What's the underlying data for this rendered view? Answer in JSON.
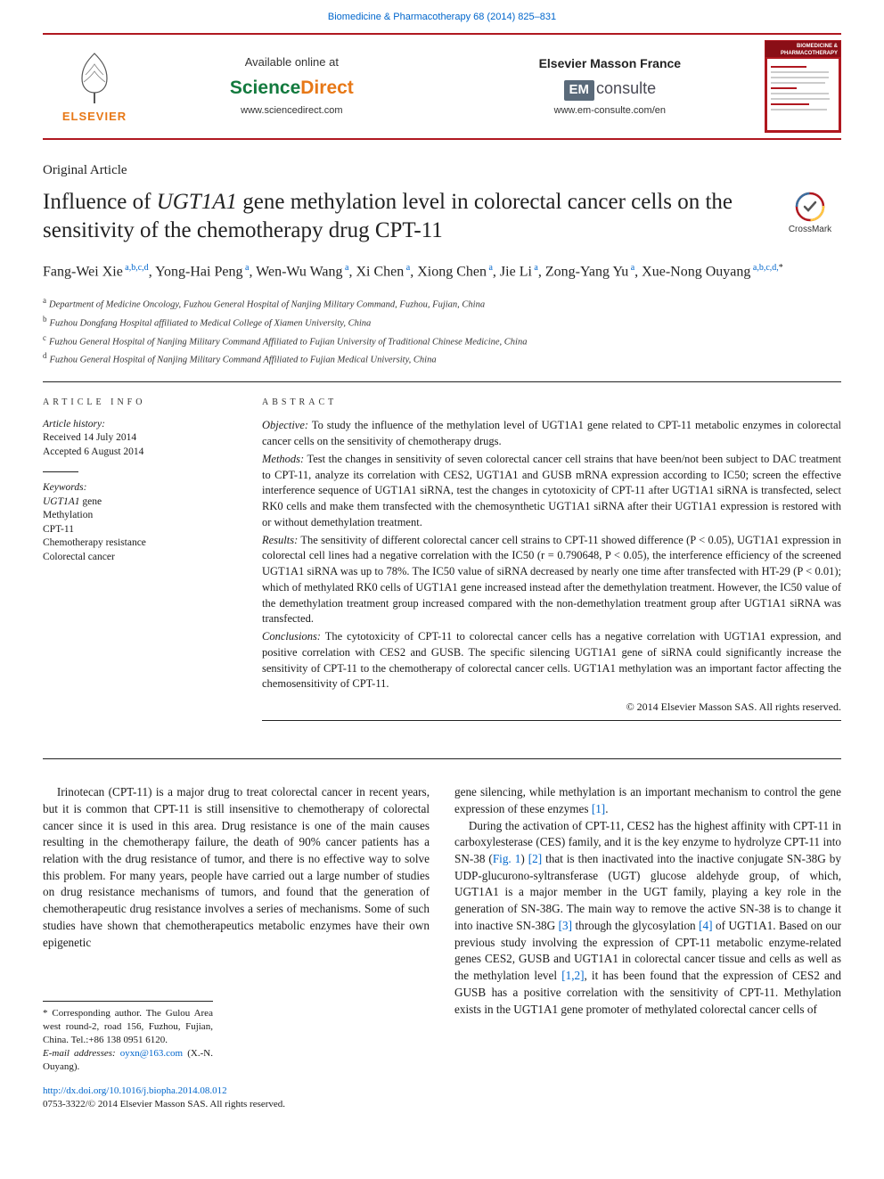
{
  "header_citation": "Biomedicine & Pharmacotherapy 68 (2014) 825–831",
  "top_band": {
    "elsevier_label": "ELSEVIER",
    "available_text": "Available online at",
    "sciencedirect_science": "Science",
    "sciencedirect_direct": "Direct",
    "sd_url": "www.sciencedirect.com",
    "masson_title": "Elsevier Masson France",
    "em_prefix": "EM",
    "em_consulte": "consulte",
    "em_url": "www.em-consulte.com/en",
    "cover_title": "BIOMEDICINE & PHARMACOTHERAPY",
    "cover_border_color": "#b01820"
  },
  "article_type": "Original Article",
  "title_pre": "Influence of ",
  "title_italic": "UGT1A1",
  "title_post": " gene methylation level in colorectal cancer cells on the sensitivity of the chemotherapy drug CPT-11",
  "crossmark_label": "CrossMark",
  "authors_raw": "Fang-Wei Xie a,b,c,d, Yong-Hai Peng a, Wen-Wu Wang a, Xi Chen a, Xiong Chen a, Jie Li a, Zong-Yang Yu a, Xue-Nong Ouyang a,b,c,d,*",
  "authors": [
    {
      "name": "Fang-Wei Xie",
      "aff": "a,b,c,d"
    },
    {
      "name": "Yong-Hai Peng",
      "aff": "a"
    },
    {
      "name": "Wen-Wu Wang",
      "aff": "a"
    },
    {
      "name": "Xi Chen",
      "aff": "a"
    },
    {
      "name": "Xiong Chen",
      "aff": "a"
    },
    {
      "name": "Jie Li",
      "aff": "a"
    },
    {
      "name": "Zong-Yang Yu",
      "aff": "a"
    },
    {
      "name": "Xue-Nong Ouyang",
      "aff": "a,b,c,d,",
      "star": true
    }
  ],
  "affiliations": {
    "a": "Department of Medicine Oncology, Fuzhou General Hospital of Nanjing Military Command, Fuzhou, Fujian, China",
    "b": "Fuzhou Dongfang Hospital affiliated to Medical College of Xiamen University, China",
    "c": "Fuzhou General Hospital of Nanjing Military Command Affiliated to Fujian University of Traditional Chinese Medicine, China",
    "d": "Fuzhou General Hospital of Nanjing Military Command Affiliated to Fujian Medical University, China"
  },
  "article_info": {
    "label": "ARTICLE INFO",
    "history_label": "Article history:",
    "received": "Received 14 July 2014",
    "accepted": "Accepted 6 August 2014",
    "keywords_label": "Keywords:",
    "keywords": [
      "UGT1A1 gene",
      "Methylation",
      "CPT-11",
      "Chemotherapy resistance",
      "Colorectal cancer"
    ]
  },
  "abstract": {
    "label": "ABSTRACT",
    "objective_label": "Objective:",
    "objective": " To study the influence of the methylation level of UGT1A1 gene related to CPT-11 metabolic enzymes in colorectal cancer cells on the sensitivity of chemotherapy drugs.",
    "methods_label": "Methods:",
    "methods": " Test the changes in sensitivity of seven colorectal cancer cell strains that have been/not been subject to DAC treatment to CPT-11, analyze its correlation with CES2, UGT1A1 and GUSB mRNA expression according to IC50; screen the effective interference sequence of UGT1A1 siRNA, test the changes in cytotoxicity of CPT-11 after UGT1A1 siRNA is transfected, select RK0 cells and make them transfected with the chemosynthetic UGT1A1 siRNA after their UGT1A1 expression is restored with or without demethylation treatment.",
    "results_label": "Results:",
    "results": " The sensitivity of different colorectal cancer cell strains to CPT-11 showed difference (P < 0.05), UGT1A1 expression in colorectal cell lines had a negative correlation with the IC50 (r = 0.790648, P < 0.05), the interference efficiency of the screened UGT1A1 siRNA was up to 78%. The IC50 value of siRNA decreased by nearly one time after transfected with HT-29 (P < 0.01); which of methylated RK0 cells of UGT1A1 gene increased instead after the demethylation treatment. However, the IC50 value of the demethylation treatment group increased compared with the non-demethylation treatment group after UGT1A1 siRNA was transfected.",
    "conclusions_label": "Conclusions:",
    "conclusions": " The cytotoxicity of CPT-11 to colorectal cancer cells has a negative correlation with UGT1A1 expression, and positive correlation with CES2 and GUSB. The specific silencing UGT1A1 gene of siRNA could significantly increase the sensitivity of CPT-11 to the chemotherapy of colorectal cancer cells. UGT1A1 methylation was an important factor affecting the chemosensitivity of CPT-11.",
    "copyright": "© 2014 Elsevier Masson SAS. All rights reserved."
  },
  "body": {
    "p1": "Irinotecan (CPT-11) is a major drug to treat colorectal cancer in recent years, but it is common that CPT-11 is still insensitive to chemotherapy of colorectal cancer since it is used in this area. Drug resistance is one of the main causes resulting in the chemotherapy failure, the death of 90% cancer patients has a relation with the drug resistance of tumor, and there is no effective way to solve this problem. For many years, people have carried out a large number of studies on drug resistance mechanisms of tumors, and found that the generation of chemotherapeutic drug resistance involves a series of mechanisms. Some of such studies have shown that chemotherapeutics metabolic enzymes have their own epigenetic",
    "p2a": "gene silencing, while methylation is an important mechanism to control the gene expression of these enzymes ",
    "p2_ref1": "[1]",
    "p2b": ".",
    "p3a": "During the activation of CPT-11, CES2 has the highest affinity with CPT-11 in carboxylesterase (CES) family, and it is the key enzyme to hydrolyze CPT-11 into SN-38 (",
    "p3_fig": "Fig. 1",
    "p3b": ") ",
    "p3_ref2": "[2]",
    "p3c": " that is then inactivated into the inactive conjugate SN-38G by UDP-glucurono-syltransferase (UGT) glucose aldehyde group, of which, UGT1A1 is a major member in the UGT family, playing a key role in the generation of SN-38G. The main way to remove the active SN-38 is to change it into inactive SN-38G ",
    "p3_ref3": "[3]",
    "p3d": " through the glycosylation ",
    "p3_ref4": "[4]",
    "p3e": " of UGT1A1. Based on our previous study involving the expression of CPT-11 metabolic enzyme-related genes CES2, GUSB and UGT1A1 in colorectal cancer tissue and cells as well as the methylation level ",
    "p3_ref12": "[1,2]",
    "p3f": ", it has been found that the expression of CES2 and GUSB has a positive correlation with the sensitivity of CPT-11. Methylation exists in the UGT1A1 gene promoter of methylated colorectal cancer cells of"
  },
  "footnote": {
    "corr": "* Corresponding author. The Gulou Area west round-2, road 156, Fuzhou, Fujian, China. Tel.:+86 138 0951 6120.",
    "email_label": "E-mail addresses: ",
    "email": "oyxn@163.com",
    "email_tail": " (X.-N. Ouyang)."
  },
  "doi": {
    "url": "http://dx.doi.org/10.1016/j.biopha.2014.08.012",
    "issn_line": "0753-3322/© 2014 Elsevier Masson SAS. All rights reserved."
  },
  "colors": {
    "brand_red": "#b01820",
    "link_blue": "#0066cc",
    "elsevier_orange": "#e77817",
    "sd_green": "#137a3e",
    "text": "#1a1a1a"
  },
  "typography": {
    "body_font": "Times New Roman",
    "title_size_pt": 19,
    "author_size_pt": 12,
    "affil_size_pt": 8,
    "abstract_size_pt": 9.5,
    "body_size_pt": 10
  }
}
